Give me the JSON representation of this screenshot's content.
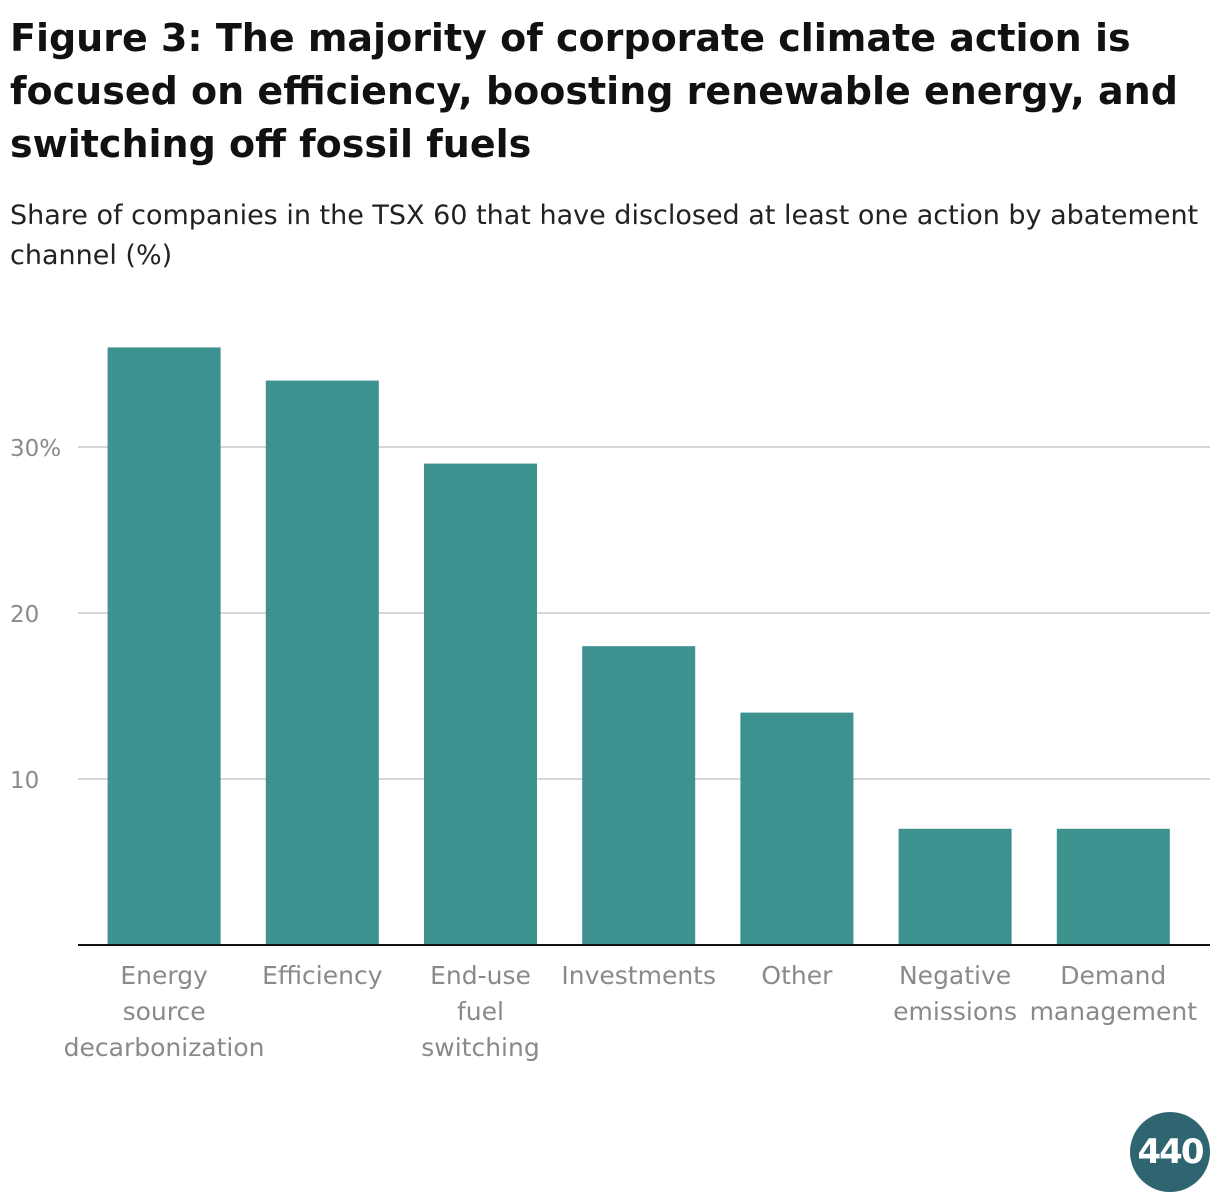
{
  "title": "Figure 3: The majority of corporate climate action is focused on efficiency, boosting renewable energy, and switching off fossil fuels",
  "subtitle": "Share of companies in the TSX 60 that have disclosed at least one action by abatement channel (%)",
  "logo": {
    "text": "440",
    "color": "#2f6570"
  },
  "colors": {
    "bar": "#3d918f",
    "grid": "#c8c8c8",
    "axis": "#111111"
  },
  "chart_data": {
    "type": "bar",
    "title": "Figure 3: The majority of corporate climate action is focused on efficiency, boosting renewable energy, and switching off fossil fuels",
    "xlabel": "",
    "ylabel": "",
    "ylim": [
      0,
      37
    ],
    "yticks": [
      {
        "value": 10,
        "label": "10"
      },
      {
        "value": 20,
        "label": "20"
      },
      {
        "value": 30,
        "label": "30%"
      }
    ],
    "categories": [
      [
        "Energy",
        "source",
        "decarbonization"
      ],
      [
        "Efficiency"
      ],
      [
        "End-use",
        "fuel",
        "switching"
      ],
      [
        "Investments"
      ],
      [
        "Other"
      ],
      [
        "Negative",
        "emissions"
      ],
      [
        "Demand",
        "management"
      ]
    ],
    "values": [
      36,
      34,
      29,
      18,
      14,
      7,
      7
    ]
  }
}
